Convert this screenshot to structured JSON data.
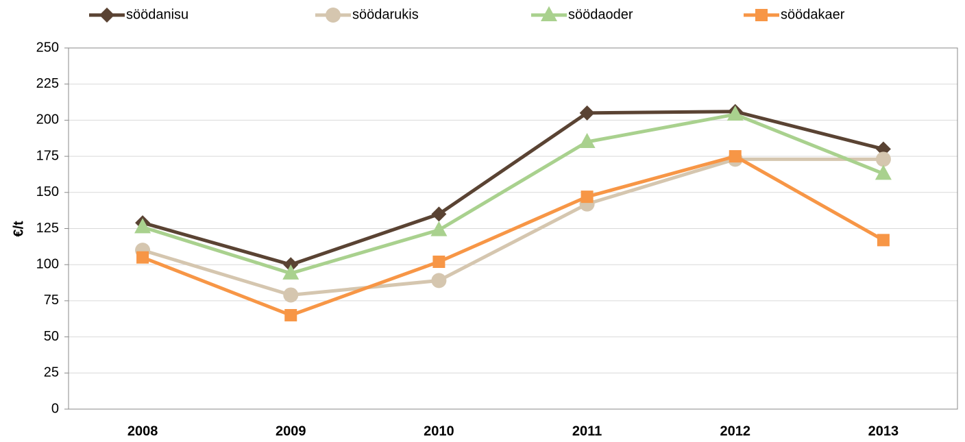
{
  "chart_data": {
    "type": "line",
    "y_label": "€/t",
    "categories": [
      "2008",
      "2009",
      "2010",
      "2011",
      "2012",
      "2013"
    ],
    "series": [
      {
        "name": "söödanisu",
        "color": "#5a4333",
        "marker": "diamond",
        "values": [
          129,
          100,
          135,
          205,
          206,
          180
        ]
      },
      {
        "name": "söödarukis",
        "color": "#d5c6af",
        "marker": "circle",
        "values": [
          110,
          79,
          89,
          142,
          173,
          173
        ]
      },
      {
        "name": "söödaoder",
        "color": "#a9d18e",
        "marker": "triangle",
        "values": [
          126,
          94,
          124,
          185,
          204,
          163
        ]
      },
      {
        "name": "söödakaer",
        "color": "#f79646",
        "marker": "square",
        "values": [
          105,
          65,
          102,
          147,
          175,
          117
        ]
      }
    ],
    "ylim": [
      0,
      250
    ],
    "yticks": [
      0,
      25,
      50,
      75,
      100,
      125,
      150,
      175,
      200,
      225,
      250
    ],
    "grid": true,
    "legend": "top"
  }
}
